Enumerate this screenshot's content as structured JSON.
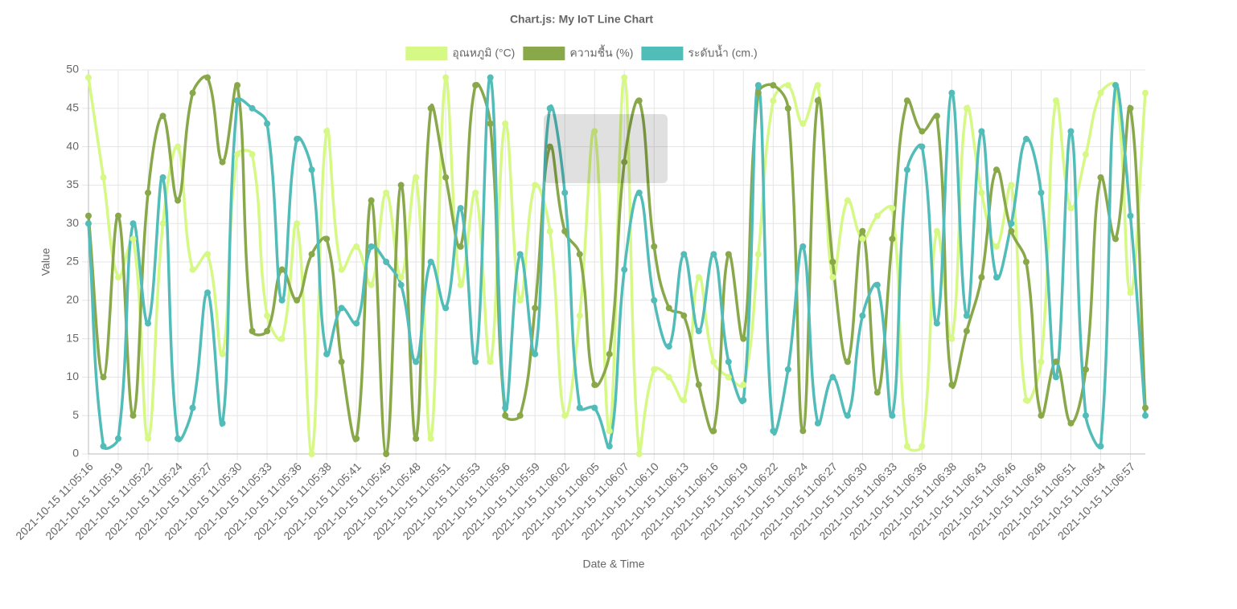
{
  "chart_data": {
    "type": "line",
    "title": "Chart.js: My IoT Line Chart",
    "x_label": "Date & Time",
    "y_label": "Value",
    "categories": [
      "2021-10-15 11:05:16",
      null,
      "2021-10-15 11:05:19",
      null,
      "2021-10-15 11:05:22",
      null,
      "2021-10-15 11:05:24",
      null,
      "2021-10-15 11:05:27",
      null,
      "2021-10-15 11:05:30",
      null,
      "2021-10-15 11:05:33",
      null,
      "2021-10-15 11:05:36",
      null,
      "2021-10-15 11:05:38",
      null,
      "2021-10-15 11:05:41",
      null,
      "2021-10-15 11:05:45",
      null,
      "2021-10-15 11:05:48",
      null,
      "2021-10-15 11:05:51",
      null,
      "2021-10-15 11:05:53",
      null,
      "2021-10-15 11:05:56",
      null,
      "2021-10-15 11:05:59",
      null,
      "2021-10-15 11:06:02",
      null,
      "2021-10-15 11:06:05",
      null,
      "2021-10-15 11:06:07",
      null,
      "2021-10-15 11:06:10",
      null,
      "2021-10-15 11:06:13",
      null,
      "2021-10-15 11:06:16",
      null,
      "2021-10-15 11:06:19",
      null,
      "2021-10-15 11:06:22",
      null,
      "2021-10-15 11:06:24",
      null,
      "2021-10-15 11:06:27",
      null,
      "2021-10-15 11:06:30",
      null,
      "2021-10-15 11:06:33",
      null,
      "2021-10-15 11:06:36",
      null,
      "2021-10-15 11:06:38",
      null,
      "2021-10-15 11:06:43",
      null,
      "2021-10-15 11:06:46",
      null,
      "2021-10-15 11:06:48",
      null,
      "2021-10-15 11:06:51",
      null,
      "2021-10-15 11:06:54",
      null,
      "2021-10-15 11:06:57",
      null
    ],
    "series": [
      {
        "name": "อุณหภูมิ (°C)",
        "color": "#d6f884",
        "values": [
          49,
          36,
          23,
          28,
          2,
          30,
          40,
          24,
          26,
          13,
          39,
          39,
          18,
          15,
          30,
          0,
          42,
          24,
          27,
          22,
          34,
          23,
          36,
          2,
          49,
          22,
          34,
          12,
          43,
          20,
          35,
          29,
          5,
          18,
          42,
          3,
          49,
          0,
          11,
          10,
          7,
          23,
          12,
          10,
          9,
          26,
          46,
          48,
          43,
          48,
          23,
          33,
          28,
          31,
          32,
          1,
          1,
          29,
          15,
          45,
          34,
          27,
          35,
          7,
          12,
          46,
          32,
          39,
          47,
          48,
          21,
          47
        ]
      },
      {
        "name": "ความชื้น (%)",
        "color": "#88a84a",
        "values": [
          31,
          10,
          31,
          5,
          34,
          44,
          33,
          47,
          49,
          38,
          48,
          16,
          16,
          24,
          20,
          26,
          28,
          12,
          2,
          33,
          0,
          35,
          2,
          45,
          36,
          27,
          48,
          43,
          5,
          5,
          19,
          40,
          29,
          26,
          9,
          13,
          38,
          46,
          27,
          19,
          18,
          9,
          3,
          26,
          15,
          47,
          48,
          45,
          3,
          46,
          25,
          12,
          29,
          8,
          28,
          46,
          42,
          44,
          9,
          16,
          23,
          37,
          29,
          25,
          5,
          12,
          4,
          11,
          36,
          28,
          45,
          6
        ]
      },
      {
        "name": "ระดับน้ำ (cm.)",
        "color": "#52bcb8",
        "values": [
          30,
          1,
          2,
          30,
          17,
          36,
          2,
          6,
          21,
          4,
          46,
          45,
          43,
          20,
          41,
          37,
          13,
          19,
          17,
          27,
          25,
          22,
          12,
          25,
          19,
          32,
          12,
          49,
          6,
          26,
          13,
          45,
          34,
          6,
          6,
          1,
          24,
          34,
          20,
          14,
          26,
          16,
          26,
          12,
          7,
          48,
          3,
          11,
          27,
          4,
          10,
          5,
          18,
          22,
          5,
          37,
          40,
          17,
          47,
          18,
          42,
          23,
          30,
          41,
          34,
          10,
          42,
          5,
          1,
          48,
          31,
          5
        ]
      }
    ],
    "ylim": [
      0,
      50
    ],
    "yticks": [
      0,
      5,
      10,
      15,
      20,
      25,
      30,
      35,
      40,
      45,
      50
    ],
    "grid": true,
    "legend": "top"
  }
}
